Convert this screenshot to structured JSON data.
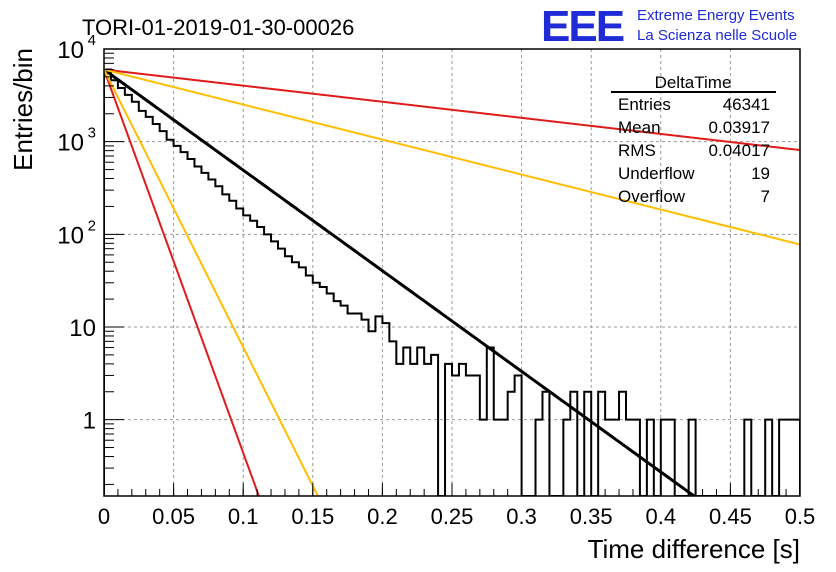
{
  "title": "TORI-01-2019-01-30-00026",
  "logo": {
    "mark": "EEE",
    "line1": "Extreme Energy Events",
    "line2": "La Scienza nelle Scuole",
    "color": "#1f2bd6"
  },
  "stats_box": {
    "title": "DeltaTime",
    "rows": [
      {
        "label": "Entries",
        "value": "46341"
      },
      {
        "label": "Mean",
        "value": "0.03917"
      },
      {
        "label": "RMS",
        "value": "0.04017"
      },
      {
        "label": "Underflow",
        "value": "19"
      },
      {
        "label": "Overflow",
        "value": "7"
      }
    ]
  },
  "chart_data": {
    "type": "line",
    "xlabel": "Time difference [s]",
    "ylabel": "Entries/bin",
    "xlim": [
      0,
      0.5
    ],
    "ylim": [
      0.15,
      10000
    ],
    "yscale": "log",
    "grid": true,
    "x_ticks": [
      "0",
      "0.05",
      "0.1",
      "0.15",
      "0.2",
      "0.25",
      "0.3",
      "0.35",
      "0.4",
      "0.45",
      "0.5"
    ],
    "x_tick_values": [
      0,
      0.05,
      0.1,
      0.15,
      0.2,
      0.25,
      0.3,
      0.35,
      0.4,
      0.45,
      0.5
    ],
    "y_ticks": [
      {
        "value": 1,
        "label": "1"
      },
      {
        "value": 10,
        "label": "10"
      },
      {
        "value": 100,
        "label": "10",
        "exp": "2"
      },
      {
        "value": 1000,
        "label": "10",
        "exp": "3"
      },
      {
        "value": 10000,
        "label": "10",
        "exp": "4"
      }
    ],
    "histogram": {
      "bin_width": 0.005,
      "x_start": 0,
      "counts": [
        6000,
        4600,
        3800,
        3200,
        2700,
        2150,
        1850,
        1550,
        1300,
        1050,
        900,
        770,
        650,
        540,
        460,
        390,
        330,
        270,
        230,
        190,
        160,
        140,
        120,
        100,
        84,
        70,
        58,
        50,
        44,
        36,
        30,
        27,
        23,
        19,
        17,
        14,
        14,
        12,
        9,
        13,
        11,
        7,
        4,
        6,
        4,
        6,
        4,
        5,
        0,
        4,
        3,
        4,
        3,
        3,
        1,
        6,
        1,
        1,
        2,
        3,
        0,
        0,
        1,
        2,
        0,
        0,
        1,
        2,
        0,
        2,
        0,
        2,
        1,
        1,
        2,
        1,
        1,
        0,
        1,
        0,
        1,
        1,
        0,
        0,
        1,
        0,
        0,
        0,
        0,
        0,
        0,
        0,
        1,
        0,
        0,
        1,
        0,
        1,
        1,
        1
      ],
      "color": "#000000"
    },
    "series": [
      {
        "type": "exp",
        "A": 6000,
        "tau": 0.04,
        "color": "#000000",
        "width": 3
      },
      {
        "type": "exp",
        "A": 6000,
        "tau": 0.25,
        "color": "#e01b1b",
        "width": 2
      },
      {
        "type": "exp",
        "A": 6000,
        "tau": 0.115,
        "color": "#ffbf00",
        "width": 2
      },
      {
        "type": "exp",
        "A": 6000,
        "tau": 0.0105,
        "color": "#e01b1b",
        "width": 2
      },
      {
        "type": "exp",
        "A": 6000,
        "tau": 0.0145,
        "color": "#ffbf00",
        "width": 2
      }
    ]
  }
}
